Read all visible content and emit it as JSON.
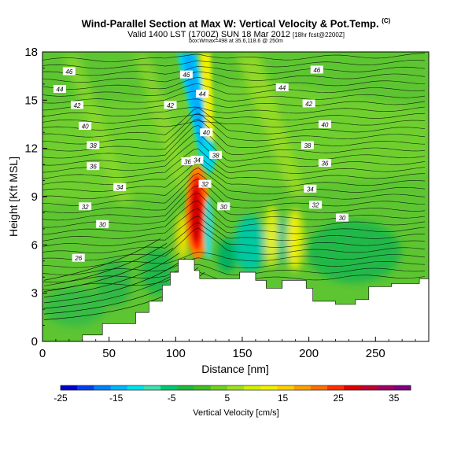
{
  "header": {
    "title": "Wind-Parallel Section at Max W: Vertical Velocity & Pot.Temp.",
    "copyright": "(C)",
    "subtitle": "Valid 1400 LST (1700Z) SUN 18 Mar 2012",
    "subtitle_note": "[18hr fcst@2200Z]",
    "subtitle2": "box:Wmax=498 at 35.6,118.6 @ 250m"
  },
  "chart_data": {
    "type": "heatmap",
    "xlabel": "Distance [nm]",
    "ylabel": "Height [Kft MSL]",
    "xlim": [
      0,
      290
    ],
    "ylim": [
      0,
      18
    ],
    "x_ticks": [
      0,
      50,
      100,
      150,
      200,
      250
    ],
    "y_ticks": [
      0,
      3,
      6,
      9,
      12,
      15,
      18
    ],
    "grid": false,
    "terrain": [
      {
        "x": 0,
        "y": 0
      },
      {
        "x": 30,
        "y": 0
      },
      {
        "x": 30,
        "y": 0.4
      },
      {
        "x": 45,
        "y": 0.4
      },
      {
        "x": 45,
        "y": 1.1
      },
      {
        "x": 70,
        "y": 1.1
      },
      {
        "x": 70,
        "y": 1.8
      },
      {
        "x": 80,
        "y": 1.8
      },
      {
        "x": 80,
        "y": 2.5
      },
      {
        "x": 90,
        "y": 2.5
      },
      {
        "x": 90,
        "y": 3.5
      },
      {
        "x": 96,
        "y": 3.5
      },
      {
        "x": 96,
        "y": 4.3
      },
      {
        "x": 102,
        "y": 4.3
      },
      {
        "x": 102,
        "y": 5.1
      },
      {
        "x": 114,
        "y": 5.1
      },
      {
        "x": 114,
        "y": 4.4
      },
      {
        "x": 118,
        "y": 4.4
      },
      {
        "x": 118,
        "y": 3.9
      },
      {
        "x": 148,
        "y": 3.9
      },
      {
        "x": 148,
        "y": 4.3
      },
      {
        "x": 160,
        "y": 4.3
      },
      {
        "x": 160,
        "y": 3.8
      },
      {
        "x": 168,
        "y": 3.8
      },
      {
        "x": 168,
        "y": 3.3
      },
      {
        "x": 180,
        "y": 3.3
      },
      {
        "x": 180,
        "y": 3.8
      },
      {
        "x": 198,
        "y": 3.8
      },
      {
        "x": 198,
        "y": 3.3
      },
      {
        "x": 203,
        "y": 3.3
      },
      {
        "x": 203,
        "y": 2.5
      },
      {
        "x": 220,
        "y": 2.5
      },
      {
        "x": 220,
        "y": 2.3
      },
      {
        "x": 235,
        "y": 2.3
      },
      {
        "x": 235,
        "y": 2.6
      },
      {
        "x": 245,
        "y": 2.6
      },
      {
        "x": 245,
        "y": 3.4
      },
      {
        "x": 262,
        "y": 3.4
      },
      {
        "x": 262,
        "y": 3.6
      },
      {
        "x": 283,
        "y": 3.6
      },
      {
        "x": 283,
        "y": 3.9
      },
      {
        "x": 290,
        "y": 3.9
      },
      {
        "x": 290,
        "y": 0
      }
    ],
    "theta_labels": [
      {
        "text": "46",
        "x": 20,
        "y": 16.8
      },
      {
        "text": "46",
        "x": 108,
        "y": 16.6
      },
      {
        "text": "46",
        "x": 206,
        "y": 16.9
      },
      {
        "text": "44",
        "x": 13,
        "y": 15.7
      },
      {
        "text": "44",
        "x": 120,
        "y": 15.4
      },
      {
        "text": "44",
        "x": 180,
        "y": 15.8
      },
      {
        "text": "42",
        "x": 26,
        "y": 14.7
      },
      {
        "text": "42",
        "x": 96,
        "y": 14.7
      },
      {
        "text": "42",
        "x": 200,
        "y": 14.8
      },
      {
        "text": "40",
        "x": 32,
        "y": 13.4
      },
      {
        "text": "40",
        "x": 123,
        "y": 13.0
      },
      {
        "text": "40",
        "x": 212,
        "y": 13.5
      },
      {
        "text": "38",
        "x": 38,
        "y": 12.2
      },
      {
        "text": "38",
        "x": 130,
        "y": 11.6
      },
      {
        "text": "38",
        "x": 199,
        "y": 12.2
      },
      {
        "text": "36",
        "x": 38,
        "y": 10.9
      },
      {
        "text": "36",
        "x": 109,
        "y": 11.2
      },
      {
        "text": "36",
        "x": 212,
        "y": 11.1
      },
      {
        "text": "34",
        "x": 116,
        "y": 11.3
      },
      {
        "text": "34",
        "x": 58,
        "y": 9.6
      },
      {
        "text": "34",
        "x": 201,
        "y": 9.5
      },
      {
        "text": "32",
        "x": 122,
        "y": 9.8
      },
      {
        "text": "32",
        "x": 32,
        "y": 8.4
      },
      {
        "text": "32",
        "x": 205,
        "y": 8.5
      },
      {
        "text": "30",
        "x": 136,
        "y": 8.4
      },
      {
        "text": "30",
        "x": 45,
        "y": 7.3
      },
      {
        "text": "30",
        "x": 225,
        "y": 7.7
      },
      {
        "text": "26",
        "x": 27,
        "y": 5.2
      }
    ],
    "colorbar": {
      "label": "Vertical Velocity [cm/s]",
      "tick_labels": [
        "-25",
        "-15",
        "-5",
        "5",
        "15",
        "25",
        "35"
      ],
      "range": [
        -25,
        38
      ],
      "colors": [
        "#0000cc",
        "#0040f0",
        "#0080ff",
        "#00b4ff",
        "#00e0f0",
        "#40e0b0",
        "#00c870",
        "#20b840",
        "#40c020",
        "#70d020",
        "#a0e020",
        "#d0f000",
        "#f0f000",
        "#ffd000",
        "#ffa000",
        "#ff7000",
        "#ff3000",
        "#e00000",
        "#c00030",
        "#a00060",
        "#800080"
      ]
    }
  }
}
